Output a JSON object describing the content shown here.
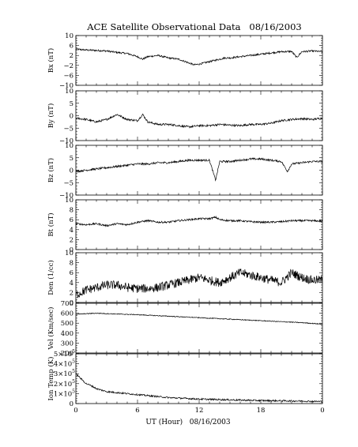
{
  "chart_data": {
    "type": "line",
    "title": "ACE Satellite Observational Data   08/16/2003",
    "xlabel": "UT (Hour)   08/16/2003",
    "x_range_hours": [
      0,
      24
    ],
    "x_tick_labels": [
      "0",
      "6",
      "12",
      "18",
      "0"
    ],
    "x_tick_hours": [
      0,
      6,
      12,
      18,
      24
    ],
    "panels": [
      {
        "name": "bx",
        "ylabel": "Bx (nT)",
        "ylim": [
          -10,
          10
        ],
        "y_ticks": [
          -10,
          -6,
          -2,
          2,
          6,
          10
        ],
        "y_tick_labels": [
          "−10",
          "−6",
          "−2",
          "2",
          "6",
          "10"
        ],
        "series": {
          "x": [
            0,
            1,
            2,
            3,
            3.5,
            4,
            5,
            6,
            6.5,
            7,
            8,
            9,
            10,
            11,
            11.5,
            12,
            13,
            14,
            14.5,
            15,
            16,
            17,
            18,
            19,
            20,
            21,
            21.5,
            22,
            23,
            24
          ],
          "values": [
            4.5,
            4.2,
            4.0,
            3.8,
            3.5,
            3.2,
            2.8,
            1.5,
            0.5,
            1.5,
            2.0,
            1.0,
            0.5,
            -1.0,
            -1.8,
            -1.5,
            -0.5,
            0.5,
            1.0,
            1.0,
            1.5,
            2.0,
            2.5,
            3.0,
            3.5,
            3.6,
            1.2,
            3.5,
            3.8,
            3.5
          ]
        }
      },
      {
        "name": "by",
        "ylabel": "By (nT)",
        "ylim": [
          -10,
          10
        ],
        "y_ticks": [
          -10,
          -5,
          0,
          5,
          10
        ],
        "y_tick_labels": [
          "−10",
          "−5",
          "0",
          "5",
          "10"
        ],
        "series": {
          "x": [
            0,
            1,
            2,
            3,
            4,
            5,
            6,
            6.5,
            7,
            8,
            9,
            10,
            11,
            12,
            13,
            14,
            15,
            16,
            17,
            18,
            19,
            20,
            21,
            22,
            23,
            24
          ],
          "values": [
            -1.0,
            -1.5,
            -2.5,
            -1.5,
            0.5,
            -1.5,
            -2.0,
            0.5,
            -2.5,
            -3.5,
            -3.5,
            -4.0,
            -4.5,
            -4.0,
            -4.0,
            -3.5,
            -3.8,
            -4.0,
            -3.5,
            -3.5,
            -3.0,
            -2.0,
            -1.5,
            -1.2,
            -1.5,
            -1.0
          ]
        }
      },
      {
        "name": "bz",
        "ylabel": "Bz (nT)",
        "ylim": [
          -10,
          10
        ],
        "y_ticks": [
          -10,
          -5,
          0,
          5,
          10
        ],
        "y_tick_labels": [
          "−10",
          "−5",
          "0",
          "5",
          "10"
        ],
        "series": {
          "x": [
            0,
            1,
            2,
            3,
            4,
            5,
            6,
            7,
            8,
            9,
            10,
            11,
            12,
            13,
            13.6,
            14,
            15,
            16,
            17,
            18,
            19,
            20,
            20.6,
            21,
            22,
            23,
            24
          ],
          "values": [
            -0.5,
            0.0,
            0.5,
            1.0,
            1.5,
            2.0,
            2.5,
            2.5,
            3.0,
            3.0,
            3.5,
            4.0,
            4.0,
            4.0,
            -4.0,
            3.5,
            3.5,
            4.0,
            4.5,
            4.5,
            4.0,
            3.5,
            -0.5,
            2.5,
            3.0,
            3.5,
            3.5
          ]
        }
      },
      {
        "name": "bt",
        "ylabel": "Bt (nT)",
        "ylim": [
          0,
          10
        ],
        "y_ticks": [
          0,
          2,
          4,
          6,
          8,
          10
        ],
        "y_tick_labels": [
          "0",
          "2",
          "4",
          "6",
          "8",
          "10"
        ],
        "series": {
          "x": [
            0,
            1,
            2,
            3,
            4,
            5,
            6,
            7,
            8,
            9,
            10,
            11,
            12,
            13,
            13.6,
            14,
            15,
            16,
            17,
            18,
            19,
            20,
            21,
            22,
            23,
            24
          ],
          "values": [
            5.2,
            5.0,
            5.2,
            4.8,
            5.2,
            5.0,
            5.5,
            5.8,
            5.5,
            5.5,
            5.8,
            6.0,
            6.2,
            6.2,
            6.5,
            6.0,
            5.8,
            5.8,
            5.6,
            5.5,
            5.5,
            5.6,
            5.8,
            5.8,
            5.8,
            5.7
          ]
        }
      },
      {
        "name": "den",
        "ylabel": "Den (1/cc)",
        "ylim": [
          0,
          10
        ],
        "y_ticks": [
          0,
          2,
          4,
          6,
          8,
          10
        ],
        "y_tick_labels": [
          "0",
          "2",
          "4",
          "6",
          "8",
          "10"
        ],
        "series": {
          "x": [
            0,
            0.5,
            1,
            2,
            3,
            4,
            5,
            6,
            7,
            8,
            9,
            10,
            11,
            12,
            13,
            14,
            15,
            16,
            17,
            18,
            19,
            20,
            21,
            22,
            23,
            24
          ],
          "values": [
            1.5,
            2.0,
            2.5,
            3.0,
            3.5,
            3.5,
            3.0,
            2.8,
            2.8,
            3.0,
            3.5,
            4.0,
            4.5,
            5.0,
            4.5,
            4.0,
            5.0,
            6.0,
            5.5,
            5.0,
            4.5,
            4.0,
            6.0,
            5.0,
            4.5,
            4.5
          ]
        }
      },
      {
        "name": "vel",
        "ylabel": "Vel (Km/sec)",
        "ylim": [
          200,
          700
        ],
        "y_ticks": [
          200,
          300,
          400,
          500,
          600,
          700
        ],
        "y_tick_labels": [
          "200",
          "300",
          "400",
          "500",
          "600",
          "700"
        ],
        "series": {
          "x": [
            0,
            2,
            4,
            6,
            8,
            10,
            12,
            14,
            16,
            18,
            20,
            22,
            24
          ],
          "values": [
            590,
            600,
            592,
            585,
            575,
            565,
            555,
            545,
            535,
            525,
            515,
            505,
            490
          ]
        }
      },
      {
        "name": "temp",
        "ylabel": "Ion Temp (K)",
        "ylim": [
          0,
          500000
        ],
        "y_ticks": [
          0,
          100000,
          200000,
          300000,
          400000,
          500000
        ],
        "y_tick_labels": [
          "0",
          "1×10",
          "2×10",
          "3×10",
          "4×10",
          "5×10"
        ],
        "y_tick_exponent": "5",
        "series": {
          "x": [
            0,
            0.5,
            1,
            1.5,
            2,
            3,
            4,
            5,
            6,
            7,
            8,
            9,
            10,
            12,
            14,
            16,
            18,
            20,
            22,
            24
          ],
          "values": [
            300000,
            250000,
            200000,
            180000,
            150000,
            120000,
            110000,
            100000,
            90000,
            80000,
            70000,
            60000,
            55000,
            45000,
            40000,
            35000,
            30000,
            28000,
            25000,
            20000
          ]
        }
      }
    ]
  }
}
